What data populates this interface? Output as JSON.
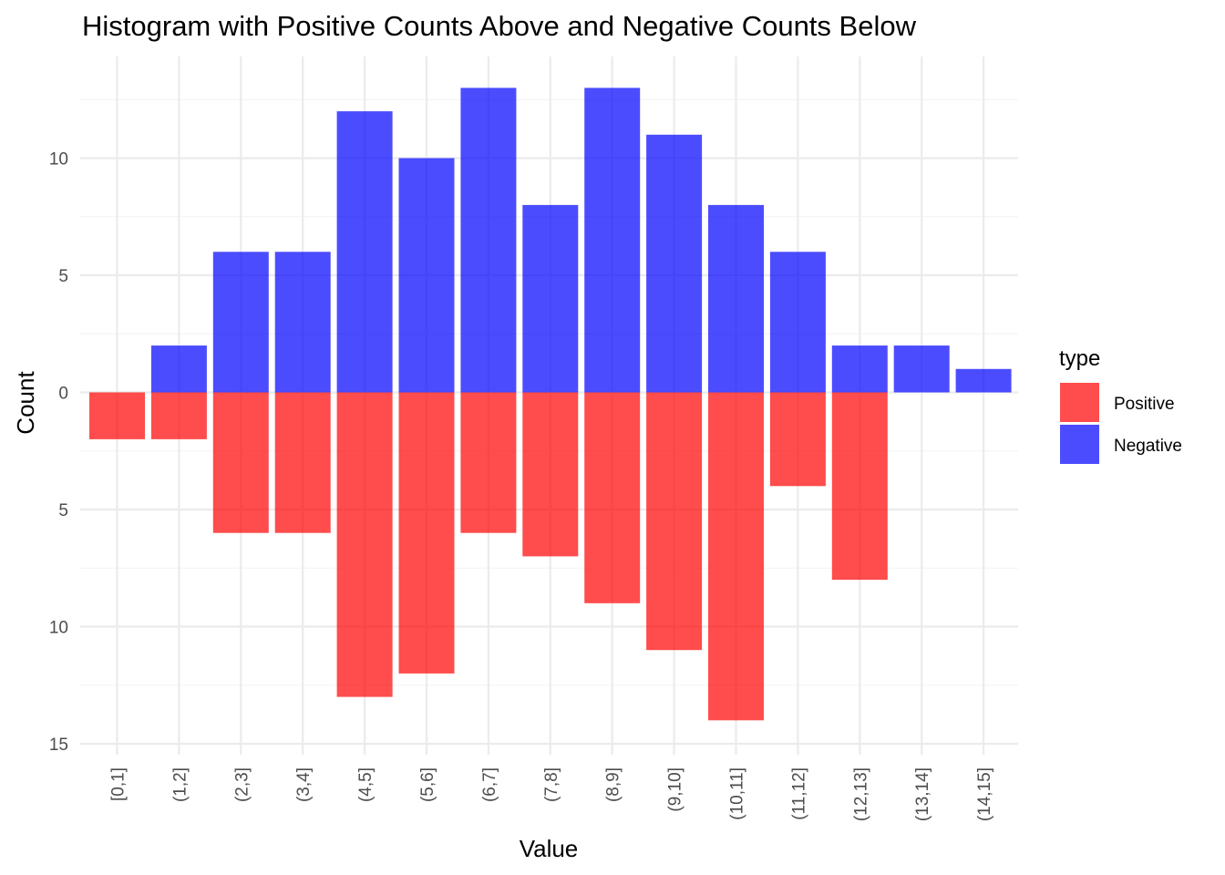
{
  "chart_data": {
    "type": "bar",
    "title": "Histogram with Positive Counts Above and Negative Counts Below",
    "xlabel": "Value",
    "ylabel": "Count",
    "categories": [
      "[0,1]",
      "(1,2]",
      "(2,3]",
      "(3,4]",
      "(4,5]",
      "(5,6]",
      "(6,7]",
      "(7,8]",
      "(8,9]",
      "(9,10]",
      "(10,11]",
      "(11,12]",
      "(12,13]",
      "(13,14]",
      "(14,15]"
    ],
    "series": [
      {
        "name": "Positive",
        "color": "#FF0000",
        "direction": "down",
        "values": [
          2,
          2,
          6,
          6,
          13,
          12,
          6,
          7,
          9,
          11,
          14,
          4,
          8,
          0,
          0
        ]
      },
      {
        "name": "Negative",
        "color": "#0000FF",
        "direction": "up",
        "values": [
          0,
          2,
          6,
          6,
          12,
          10,
          13,
          8,
          13,
          11,
          8,
          6,
          2,
          2,
          1
        ]
      }
    ],
    "ylim": [
      -15,
      13.4
    ],
    "y_ticks": [
      {
        "value": 10,
        "label": "10"
      },
      {
        "value": 5,
        "label": "5"
      },
      {
        "value": 0,
        "label": "0"
      },
      {
        "value": -5,
        "label": "5"
      },
      {
        "value": -10,
        "label": "10"
      },
      {
        "value": -15,
        "label": "15"
      }
    ],
    "legend": {
      "title": "type",
      "position": "right",
      "entries": [
        "Positive",
        "Negative"
      ]
    },
    "grid": true,
    "bar_opacity": 0.7
  }
}
